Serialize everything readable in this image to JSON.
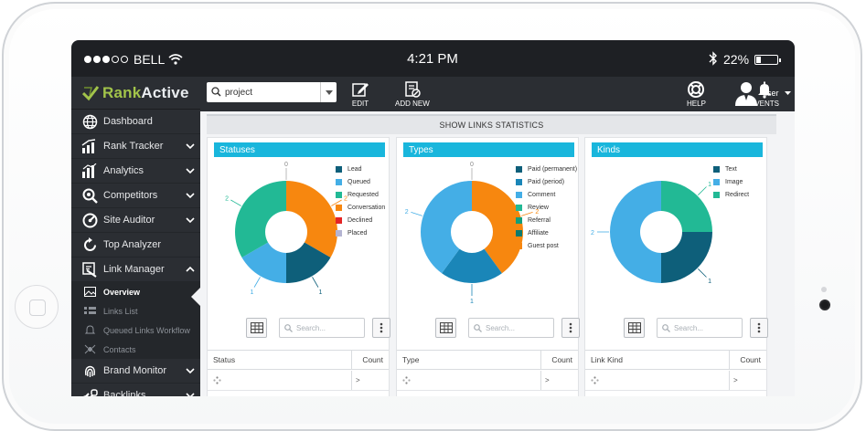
{
  "statusbar": {
    "carrier": "BELL",
    "time": "4:21 PM",
    "battery": "22%",
    "battery_level": 0.22,
    "signal_bars_filled": 3,
    "signal_bars_total": 5,
    "bluetooth_icon": "bluetooth-icon",
    "wifi_icon": "wifi-icon"
  },
  "brand": {
    "name_green": "Rank",
    "name_white": "Active"
  },
  "topbar": {
    "project_value": "project",
    "edit_label": "EDIT",
    "add_new_label": "ADD NEW",
    "help_label": "HELP",
    "events_label": "EVENTS",
    "user_label": "user"
  },
  "sidebar": {
    "items": [
      {
        "label": "Dashboard",
        "icon": "globe-icon",
        "chevron": "none"
      },
      {
        "label": "Rank Tracker",
        "icon": "rank-chart-icon",
        "chevron": "down"
      },
      {
        "label": "Analytics",
        "icon": "analytics-icon",
        "chevron": "down"
      },
      {
        "label": "Competitors",
        "icon": "competitors-icon",
        "chevron": "down"
      },
      {
        "label": "Site Auditor",
        "icon": "gauge-icon",
        "chevron": "down"
      },
      {
        "label": "Top Analyzer",
        "icon": "refresh-icon",
        "chevron": "none"
      },
      {
        "label": "Link Manager",
        "icon": "link-icon",
        "chevron": "up"
      }
    ],
    "sub_items": [
      {
        "label": "Overview",
        "icon": "image-icon",
        "active": true
      },
      {
        "label": "Links List",
        "icon": "list-icon",
        "active": false
      },
      {
        "label": "Queued Links Workflow",
        "icon": "bell-icon",
        "active": false
      },
      {
        "label": "Contacts",
        "icon": "contacts-icon",
        "active": false
      }
    ],
    "items_after": [
      {
        "label": "Brand Monitor",
        "icon": "fingerprint-icon",
        "chevron": "down"
      },
      {
        "label": "Backlinks",
        "icon": "backlinks-icon",
        "chevron": "down"
      }
    ]
  },
  "main": {
    "section_title": "SHOW LINKS STATISTICS",
    "search_placeholder": "Search...",
    "count_header": "Count"
  },
  "colors": {
    "cyan": "#19b6dc",
    "dark_teal": "#0e5f7a",
    "light_blue": "#44aee6",
    "green": "#22b995",
    "orange": "#f7870f",
    "red": "#e42525",
    "lavender": "#b4b4d2",
    "deep_teal": "#0c7a6e"
  },
  "chart_data": [
    {
      "type": "pie",
      "title": "Statuses",
      "table_header": "Status",
      "series": [
        {
          "name": "Lead",
          "value": 1,
          "color": "#0e5f7a"
        },
        {
          "name": "Queued",
          "value": 1,
          "color": "#44aee6"
        },
        {
          "name": "Requested",
          "value": 2,
          "color": "#22b995"
        },
        {
          "name": "Conversation",
          "value": 2,
          "color": "#f7870f"
        },
        {
          "name": "Declined",
          "value": 0,
          "color": "#e42525"
        },
        {
          "name": "Placed",
          "value": 0,
          "color": "#b4b4d2"
        }
      ],
      "order": [
        3,
        0,
        1,
        2,
        4,
        5
      ]
    },
    {
      "type": "pie",
      "title": "Types",
      "table_header": "Type",
      "series": [
        {
          "name": "Paid (permanent)",
          "value": 0,
          "color": "#0e5f7a"
        },
        {
          "name": "Paid (period)",
          "value": 1,
          "color": "#1a86b8"
        },
        {
          "name": "Comment",
          "value": 2,
          "color": "#44aee6"
        },
        {
          "name": "Review",
          "value": 0,
          "color": "#22b995"
        },
        {
          "name": "Referral",
          "value": 0,
          "color": "#139e7a"
        },
        {
          "name": "Affiliate",
          "value": 0,
          "color": "#0c7a6e"
        },
        {
          "name": "Guest post",
          "value": 2,
          "color": "#f7870f"
        }
      ],
      "order": [
        6,
        1,
        2,
        0,
        3,
        4,
        5
      ]
    },
    {
      "type": "pie",
      "title": "Kinds",
      "table_header": "Link Kind",
      "series": [
        {
          "name": "Text",
          "value": 1,
          "color": "#0e5f7a"
        },
        {
          "name": "Image",
          "value": 2,
          "color": "#44aee6"
        },
        {
          "name": "Redirect",
          "value": 1,
          "color": "#22b995"
        }
      ],
      "order": [
        2,
        0,
        1
      ]
    }
  ],
  "table_row_value": ">"
}
